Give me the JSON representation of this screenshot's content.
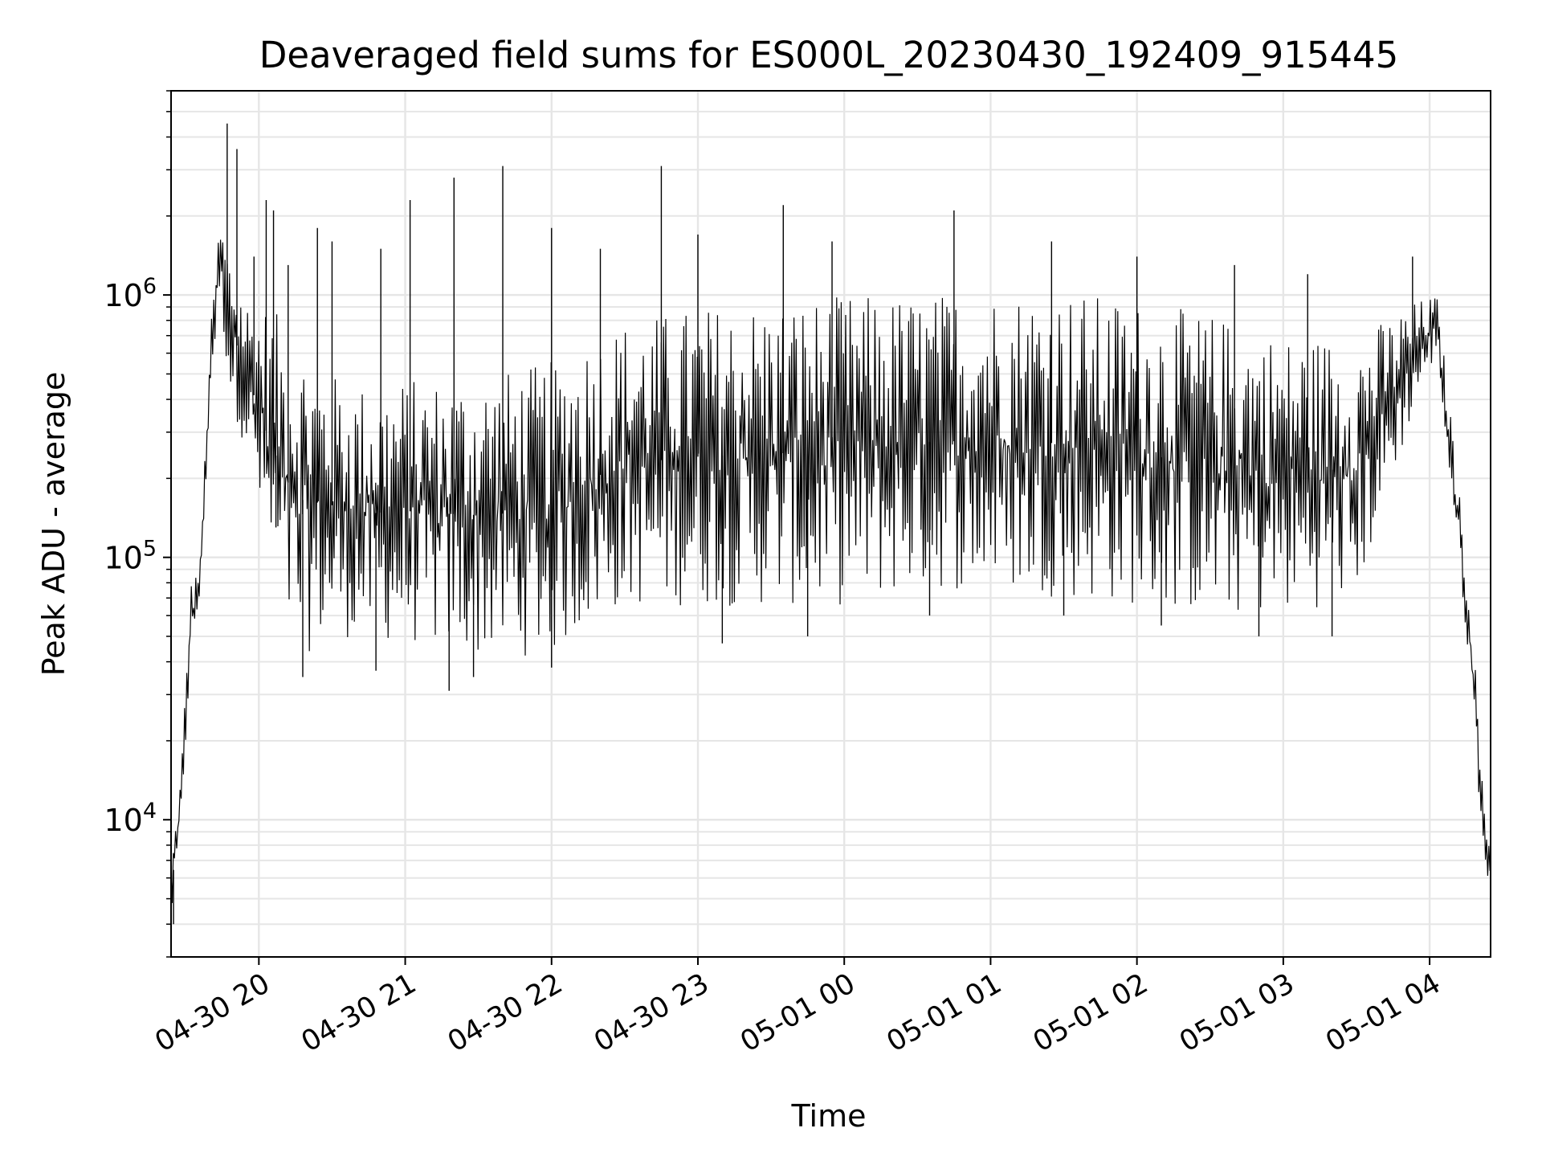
{
  "chart_data": {
    "type": "line",
    "title": "Deaveraged field sums for ES000L_20230430_192409_915445",
    "xlabel": "Time",
    "ylabel": "Peak ADU - average",
    "y_scale": "log",
    "ylim": [
      3000,
      6000000
    ],
    "xlim": [
      "2023-04-30 19:24",
      "2023-05-01 04:25"
    ],
    "x_ticks": [
      {
        "value": "2023-04-30 20:00",
        "label": "04-30 20"
      },
      {
        "value": "2023-04-30 21:00",
        "label": "04-30 21"
      },
      {
        "value": "2023-04-30 22:00",
        "label": "04-30 22"
      },
      {
        "value": "2023-04-30 23:00",
        "label": "04-30 23"
      },
      {
        "value": "2023-05-01 00:00",
        "label": "05-01 00"
      },
      {
        "value": "2023-05-01 01:00",
        "label": "05-01 01"
      },
      {
        "value": "2023-05-01 02:00",
        "label": "05-01 02"
      },
      {
        "value": "2023-05-01 03:00",
        "label": "05-01 03"
      },
      {
        "value": "2023-05-01 04:00",
        "label": "05-01 04"
      }
    ],
    "y_ticks": [
      {
        "value": 10000,
        "base": "10",
        "exp": "4"
      },
      {
        "value": 100000,
        "base": "10",
        "exp": "5"
      },
      {
        "value": 1000000,
        "base": "10",
        "exp": "6"
      }
    ],
    "grid": true,
    "legend": false,
    "series": [
      {
        "color": "#000000",
        "envelope": [
          {
            "x": "2023-04-30 19:24",
            "low": 4000,
            "high": 7000
          },
          {
            "x": "2023-04-30 19:28",
            "low": 9000,
            "high": 15000
          },
          {
            "x": "2023-04-30 19:32",
            "low": 40000,
            "high": 80000
          },
          {
            "x": "2023-04-30 19:36",
            "low": 70000,
            "high": 100000
          },
          {
            "x": "2023-04-30 19:40",
            "low": 400000,
            "high": 700000
          },
          {
            "x": "2023-04-30 19:44",
            "low": 1000000,
            "high": 2000000
          },
          {
            "x": "2023-04-30 19:48",
            "low": 400000,
            "high": 1500000
          },
          {
            "x": "2023-04-30 19:55",
            "low": 250000,
            "high": 1000000
          },
          {
            "x": "2023-04-30 20:05",
            "low": 80000,
            "high": 900000
          },
          {
            "x": "2023-04-30 20:15",
            "low": 40000,
            "high": 700000
          },
          {
            "x": "2023-04-30 20:30",
            "low": 50000,
            "high": 500000
          },
          {
            "x": "2023-04-30 20:45",
            "low": 48000,
            "high": 450000
          },
          {
            "x": "2023-04-30 21:00",
            "low": 47000,
            "high": 480000
          },
          {
            "x": "2023-04-30 21:15",
            "low": 45000,
            "high": 480000
          },
          {
            "x": "2023-04-30 21:30",
            "low": 42000,
            "high": 500000
          },
          {
            "x": "2023-04-30 21:45",
            "low": 42000,
            "high": 520000
          },
          {
            "x": "2023-04-30 22:00",
            "low": 42000,
            "high": 560000
          },
          {
            "x": "2023-04-30 22:15",
            "low": 55000,
            "high": 700000
          },
          {
            "x": "2023-04-30 22:30",
            "low": 65000,
            "high": 800000
          },
          {
            "x": "2023-04-30 23:00",
            "low": 65000,
            "high": 900000
          },
          {
            "x": "2023-04-30 23:30",
            "low": 65000,
            "high": 950000
          },
          {
            "x": "2023-05-01 00:00",
            "low": 65000,
            "high": 1000000
          },
          {
            "x": "2023-05-01 00:30",
            "low": 75000,
            "high": 1000000
          },
          {
            "x": "2023-05-01 01:00",
            "low": 75000,
            "high": 1050000
          },
          {
            "x": "2023-05-01 01:30",
            "low": 70000,
            "high": 1050000
          },
          {
            "x": "2023-05-01 02:00",
            "low": 65000,
            "high": 950000
          },
          {
            "x": "2023-05-01 02:30",
            "low": 60000,
            "high": 850000
          },
          {
            "x": "2023-05-01 03:00",
            "low": 60000,
            "high": 700000
          },
          {
            "x": "2023-05-01 03:30",
            "low": 70000,
            "high": 700000
          },
          {
            "x": "2023-05-01 03:55",
            "low": 400000,
            "high": 950000
          },
          {
            "x": "2023-05-01 04:03",
            "low": 600000,
            "high": 1000000
          },
          {
            "x": "2023-05-01 04:08",
            "low": 200000,
            "high": 400000
          },
          {
            "x": "2023-05-01 04:13",
            "low": 80000,
            "high": 150000
          },
          {
            "x": "2023-05-01 04:18",
            "low": 25000,
            "high": 50000
          },
          {
            "x": "2023-05-01 04:22",
            "low": 7000,
            "high": 12000
          },
          {
            "x": "2023-05-01 04:25",
            "low": 5500,
            "high": 8000
          }
        ],
        "spikes": [
          {
            "x": "2023-04-30 19:47",
            "y": 4500000
          },
          {
            "x": "2023-04-30 19:51",
            "y": 3600000
          },
          {
            "x": "2023-04-30 19:58",
            "y": 1400000
          },
          {
            "x": "2023-04-30 20:03",
            "y": 2300000
          },
          {
            "x": "2023-04-30 20:06",
            "y": 2100000
          },
          {
            "x": "2023-04-30 20:12",
            "y": 1300000
          },
          {
            "x": "2023-04-30 20:24",
            "y": 1800000
          },
          {
            "x": "2023-04-30 20:30",
            "y": 1600000
          },
          {
            "x": "2023-04-30 20:50",
            "y": 1500000
          },
          {
            "x": "2023-04-30 21:02",
            "y": 2300000
          },
          {
            "x": "2023-04-30 21:20",
            "y": 2800000
          },
          {
            "x": "2023-04-30 21:40",
            "y": 3100000
          },
          {
            "x": "2023-04-30 22:00",
            "y": 1800000
          },
          {
            "x": "2023-04-30 22:20",
            "y": 1500000
          },
          {
            "x": "2023-04-30 22:45",
            "y": 3100000
          },
          {
            "x": "2023-04-30 23:00",
            "y": 1700000
          },
          {
            "x": "2023-04-30 23:35",
            "y": 2200000
          },
          {
            "x": "2023-04-30 23:55",
            "y": 1600000
          },
          {
            "x": "2023-05-01 00:45",
            "y": 2100000
          },
          {
            "x": "2023-05-01 01:25",
            "y": 1600000
          },
          {
            "x": "2023-05-01 02:00",
            "y": 1400000
          },
          {
            "x": "2023-05-01 02:40",
            "y": 1300000
          },
          {
            "x": "2023-05-01 03:10",
            "y": 1200000
          },
          {
            "x": "2023-05-01 03:53",
            "y": 1400000
          }
        ],
        "dips": [
          {
            "x": "2023-04-30 19:25",
            "y": 4000
          },
          {
            "x": "2023-04-30 20:07",
            "y": 130000
          },
          {
            "x": "2023-04-30 20:18",
            "y": 35000
          },
          {
            "x": "2023-04-30 20:48",
            "y": 37000
          },
          {
            "x": "2023-04-30 21:18",
            "y": 31000
          },
          {
            "x": "2023-04-30 21:28",
            "y": 35000
          },
          {
            "x": "2023-04-30 22:00",
            "y": 38000
          },
          {
            "x": "2023-04-30 23:10",
            "y": 47000
          },
          {
            "x": "2023-04-30 23:45",
            "y": 50000
          },
          {
            "x": "2023-05-01 00:35",
            "y": 60000
          },
          {
            "x": "2023-05-01 01:30",
            "y": 60000
          },
          {
            "x": "2023-05-01 02:10",
            "y": 55000
          },
          {
            "x": "2023-05-01 02:50",
            "y": 50000
          },
          {
            "x": "2023-05-01 03:20",
            "y": 50000
          }
        ]
      }
    ]
  }
}
